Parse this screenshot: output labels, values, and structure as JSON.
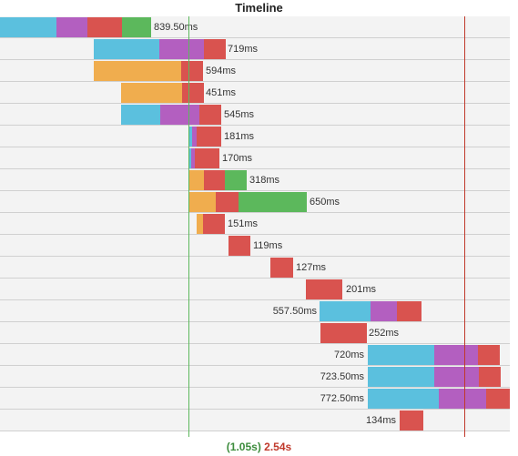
{
  "title": "Timeline",
  "colors": {
    "blocking": "#5bc0de",
    "dns": "#b35fc0",
    "connect": "#f0ad4e",
    "send": "#d9534f",
    "receive": "#5cb85c",
    "dom_line": "#5cb85c",
    "load_line": "#c0392b"
  },
  "footer": {
    "dom_loaded": "(1.05s)",
    "load": "2.54s"
  },
  "rows": [
    {
      "duration": "839.50ms"
    },
    {
      "duration": "719ms"
    },
    {
      "duration": "594ms"
    },
    {
      "duration": "451ms"
    },
    {
      "duration": "545ms"
    },
    {
      "duration": "181ms"
    },
    {
      "duration": "170ms"
    },
    {
      "duration": "318ms"
    },
    {
      "duration": "650ms"
    },
    {
      "duration": "151ms"
    },
    {
      "duration": "119ms"
    },
    {
      "duration": "127ms"
    },
    {
      "duration": "201ms"
    },
    {
      "duration": "557.50ms"
    },
    {
      "duration": "252ms"
    },
    {
      "duration": "720ms"
    },
    {
      "duration": "723.50ms"
    },
    {
      "duration": "772.50ms"
    },
    {
      "duration": "134ms"
    }
  ]
}
